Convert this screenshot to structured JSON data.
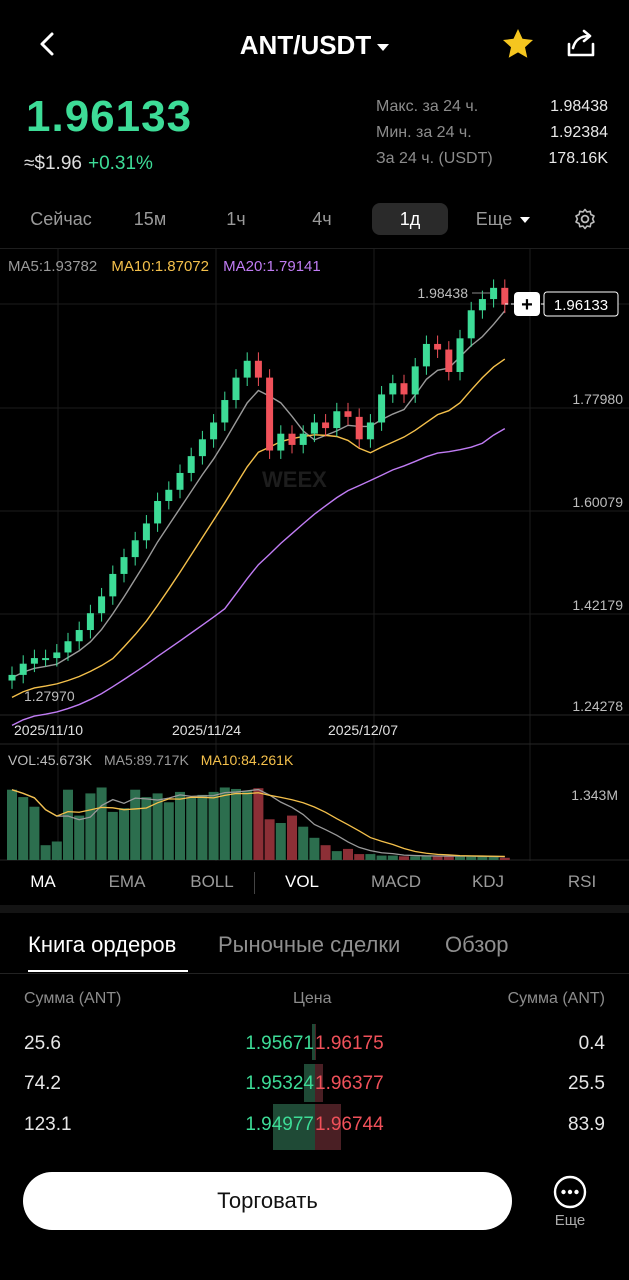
{
  "header": {
    "title": "ANT/USDT",
    "back_icon": "chevron-left-icon",
    "star_icon": "star-icon",
    "share_icon": "share-icon"
  },
  "price": {
    "last": "1.96133",
    "usd": "≈$1.96",
    "change": "+0.31%"
  },
  "stats": [
    {
      "label": "Макс. за 24 ч.",
      "value": "1.98438"
    },
    {
      "label": "Мин. за 24 ч.",
      "value": "1.92384"
    },
    {
      "label": "За 24 ч. (USDT)",
      "value": "178.16K"
    }
  ],
  "timeframes": {
    "items": [
      "Сейчас",
      "15м",
      "1ч",
      "4ч",
      "1д"
    ],
    "active": "1д",
    "more": "Еще",
    "settings_icon": "gear-icon"
  },
  "ma_legend": {
    "ma5": "MA5:1.93782",
    "ma10": "MA10:1.87072",
    "ma20": "MA20:1.79141"
  },
  "chart": {
    "price_axis": [
      "1.77980",
      "1.60079",
      "1.42179",
      "1.24278"
    ],
    "date_axis": [
      "2025/11/10",
      "2025/11/24",
      "2025/12/07"
    ],
    "high_label": "1.98438",
    "low_label": "1.27970",
    "current_label": "1.96133",
    "vol_axis": "1.343M",
    "watermark": "WEEX"
  },
  "vol_legend": {
    "vol": "VOL:45.673K",
    "ma5": "MA5:89.717K",
    "ma10": "MA10:84.261K"
  },
  "indicators": {
    "items": [
      "MA",
      "EMA",
      "BOLL",
      "VOL",
      "MACD",
      "KDJ",
      "RSI"
    ]
  },
  "tabs": [
    "Книга ордеров",
    "Рыночные сделки",
    "Обзор"
  ],
  "orderbook": {
    "head_left": "Сумма (ANT)",
    "head_mid": "Цена",
    "head_right": "Сумма (ANT)",
    "rows": [
      {
        "bid_amount": "25.6",
        "bid_price": "1.95671",
        "ask_price": "1.96175",
        "ask_amount": "0.4"
      },
      {
        "bid_amount": "74.2",
        "bid_price": "1.95324",
        "ask_price": "1.96377",
        "ask_amount": "25.5"
      },
      {
        "bid_amount": "123.1",
        "bid_price": "1.94977",
        "ask_price": "1.96744",
        "ask_amount": "83.9"
      }
    ]
  },
  "footer": {
    "trade_label": "Торговать",
    "more_label": "Еще",
    "more_icon": "more-dots-icon"
  },
  "colors": {
    "up": "#3ddc97",
    "down": "#f0515a",
    "ma5": "#d8d8d8",
    "ma10": "#f4c04b",
    "ma20": "#c07cf4",
    "star": "#f5c61f"
  }
}
